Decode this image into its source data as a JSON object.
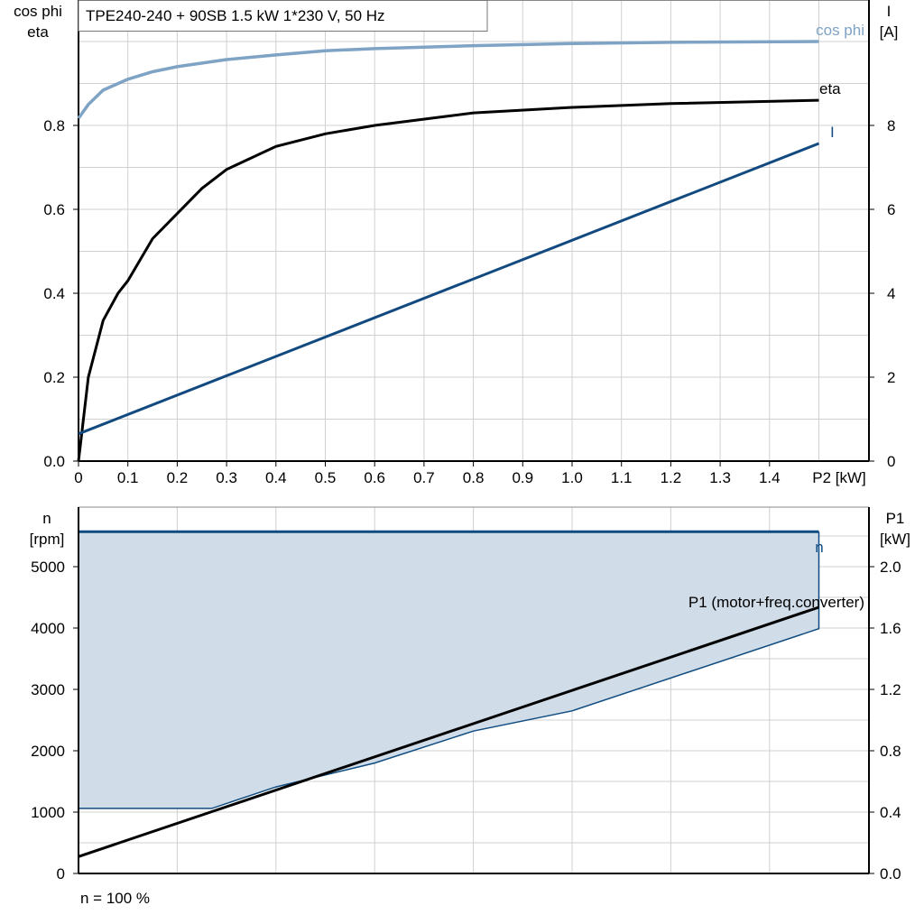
{
  "title": "TPE240-240 + 90SB   1.5 kW   1*230 V, 50 Hz",
  "colors": {
    "cos_phi": "#7fa3c4",
    "eta": "#000000",
    "I": "#124a80",
    "n": "#0f4c81",
    "n_fill": "#d0dce8",
    "P1": "#000000",
    "grid": "#d0d0d0"
  },
  "chart_data": [
    {
      "type": "line",
      "xlabel": "P2 [kW]",
      "ylabel_left": [
        "cos phi",
        "eta"
      ],
      "ylabel_right": [
        "I",
        "[A]"
      ],
      "xlim": [
        0,
        1.6
      ],
      "ylim_left": [
        0,
        1.1
      ],
      "ylim_right": [
        0,
        11
      ],
      "x_ticks": [
        "0",
        "0.1",
        "0.2",
        "0.3",
        "0.4",
        "0.5",
        "0.6",
        "0.7",
        "0.8",
        "0.9",
        "1.0",
        "1.1",
        "1.2",
        "1.3",
        "1.4"
      ],
      "y_left_ticks": [
        "0.0",
        "0.2",
        "0.4",
        "0.6",
        "0.8"
      ],
      "y_right_ticks": [
        "0",
        "2",
        "4",
        "6",
        "8"
      ],
      "grid": true,
      "series": [
        {
          "name": "cos phi",
          "axis": "left",
          "x": [
            0,
            0.02,
            0.05,
            0.1,
            0.15,
            0.2,
            0.3,
            0.4,
            0.5,
            0.6,
            0.8,
            1.0,
            1.2,
            1.5
          ],
          "y": [
            0.817,
            0.85,
            0.884,
            0.91,
            0.928,
            0.94,
            0.957,
            0.968,
            0.978,
            0.983,
            0.99,
            0.995,
            0.998,
            1.0
          ]
        },
        {
          "name": "eta",
          "axis": "left",
          "x": [
            0,
            0.02,
            0.05,
            0.08,
            0.1,
            0.15,
            0.2,
            0.25,
            0.3,
            0.4,
            0.5,
            0.6,
            0.8,
            1.0,
            1.2,
            1.5
          ],
          "y": [
            0,
            0.2,
            0.335,
            0.4,
            0.43,
            0.53,
            0.59,
            0.65,
            0.695,
            0.75,
            0.78,
            0.8,
            0.83,
            0.843,
            0.852,
            0.86
          ]
        },
        {
          "name": "I",
          "axis": "right",
          "x": [
            0,
            1.5
          ],
          "y": [
            0.65,
            7.57
          ]
        }
      ]
    },
    {
      "type": "area",
      "xlim": [
        0,
        1.6
      ],
      "ylabel_left": [
        "n",
        "[rpm]"
      ],
      "ylabel_right": [
        "P1",
        "[kW]"
      ],
      "ylim_left": [
        0,
        6000
      ],
      "ylim_right": [
        0,
        2.4
      ],
      "y_left_ticks": [
        "0",
        "1000",
        "2000",
        "3000",
        "4000",
        "5000"
      ],
      "y_right_ticks": [
        "0.0",
        "0.4",
        "0.8",
        "1.2",
        "1.6",
        "2.0"
      ],
      "grid": true,
      "footnote": "n = 100 %",
      "series": [
        {
          "name": "n",
          "axis": "left",
          "x": [
            0,
            1.5
          ],
          "y_max": [
            5570,
            5570
          ],
          "x_min": [
            0,
            0.27,
            0.4,
            0.6,
            0.8,
            1.0,
            1.5
          ],
          "y_min": [
            1060,
            1060,
            1410,
            1800,
            2320,
            2650,
            3990
          ]
        },
        {
          "name": "P1 (motor+freq.converter)",
          "axis": "right",
          "x": [
            0,
            1.5
          ],
          "y": [
            0.11,
            1.735
          ]
        }
      ]
    }
  ]
}
